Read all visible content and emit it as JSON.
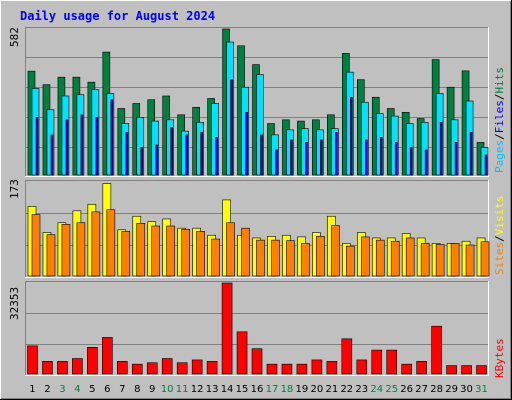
{
  "chart_data": [
    {
      "type": "bar",
      "title": "Daily usage for August 2024",
      "categories": [
        "1",
        "2",
        "3",
        "4",
        "5",
        "6",
        "7",
        "8",
        "9",
        "10",
        "11",
        "12",
        "13",
        "14",
        "15",
        "16",
        "17",
        "18",
        "19",
        "20",
        "21",
        "22",
        "23",
        "24",
        "25",
        "26",
        "27",
        "28",
        "29",
        "30",
        "31"
      ],
      "y_max_label": "582",
      "ylim": [
        0,
        582
      ],
      "grid": true,
      "legend": "right",
      "ylabel_parts": [
        "Pages",
        "/",
        "Files",
        "/",
        "Hits"
      ],
      "series": [
        {
          "name": "Hits",
          "color": "#008040",
          "values": [
            414,
            360,
            390,
            390,
            370,
            490,
            265,
            285,
            300,
            315,
            240,
            270,
            305,
            582,
            515,
            440,
            205,
            220,
            215,
            220,
            240,
            485,
            380,
            310,
            265,
            250,
            225,
            460,
            350,
            415,
            130
          ]
        },
        {
          "name": "Files",
          "color": "#00e0ff",
          "values": [
            345,
            260,
            315,
            320,
            340,
            325,
            205,
            230,
            215,
            220,
            175,
            210,
            285,
            530,
            350,
            400,
            160,
            180,
            185,
            180,
            185,
            410,
            290,
            245,
            235,
            205,
            210,
            325,
            220,
            295,
            110
          ]
        },
        {
          "name": "Pages",
          "color": "#0000ff",
          "values": [
            230,
            160,
            220,
            240,
            230,
            300,
            170,
            110,
            120,
            190,
            160,
            170,
            150,
            380,
            250,
            160,
            100,
            140,
            130,
            140,
            170,
            310,
            140,
            150,
            130,
            110,
            100,
            210,
            130,
            170,
            80
          ]
        }
      ]
    },
    {
      "type": "bar",
      "categories": [
        "1",
        "2",
        "3",
        "4",
        "5",
        "6",
        "7",
        "8",
        "9",
        "10",
        "11",
        "12",
        "13",
        "14",
        "15",
        "16",
        "17",
        "18",
        "19",
        "20",
        "21",
        "22",
        "23",
        "24",
        "25",
        "26",
        "27",
        "28",
        "29",
        "30",
        "31"
      ],
      "y_max_label": "173",
      "ylim": [
        0,
        173
      ],
      "grid": true,
      "legend": "right",
      "ylabel_parts": [
        "Sites",
        "/",
        "Visits"
      ],
      "series": [
        {
          "name": "Visits",
          "color": "#ffff00",
          "values": [
            128,
            80,
            98,
            120,
            132,
            170,
            85,
            110,
            100,
            105,
            88,
            88,
            75,
            140,
            75,
            70,
            73,
            75,
            72,
            80,
            110,
            60,
            80,
            70,
            70,
            78,
            70,
            60,
            60,
            64,
            70
          ]
        },
        {
          "name": "Sites",
          "color": "#ff8000",
          "values": [
            113,
            76,
            95,
            98,
            118,
            122,
            82,
            97,
            92,
            92,
            86,
            82,
            68,
            98,
            88,
            66,
            66,
            65,
            60,
            73,
            93,
            55,
            72,
            66,
            64,
            70,
            60,
            58,
            60,
            57,
            63
          ]
        }
      ]
    },
    {
      "type": "bar",
      "categories": [
        "1",
        "2",
        "3",
        "4",
        "5",
        "6",
        "7",
        "8",
        "9",
        "10",
        "11",
        "12",
        "13",
        "14",
        "15",
        "16",
        "17",
        "18",
        "19",
        "20",
        "21",
        "22",
        "23",
        "24",
        "25",
        "26",
        "27",
        "28",
        "29",
        "30",
        "31"
      ],
      "y_max_label": "32353",
      "ylim": [
        0,
        32353
      ],
      "grid": true,
      "legend": "right",
      "ylabel_parts": [
        "KBytes"
      ],
      "series": [
        {
          "name": "KBytes",
          "color": "#ff0000",
          "values": [
            10000,
            4500,
            4500,
            5500,
            9500,
            13000,
            4500,
            3500,
            4000,
            5500,
            4000,
            5000,
            4500,
            32353,
            15000,
            9000,
            3500,
            3500,
            3500,
            5000,
            4500,
            12500,
            5000,
            8500,
            8500,
            3500,
            4500,
            17000,
            3000,
            3000,
            3000
          ]
        }
      ]
    }
  ],
  "weekend_days": [
    "3",
    "4",
    "10",
    "11",
    "17",
    "18",
    "24",
    "25",
    "31"
  ],
  "colors": {
    "background": "#c0c0c0",
    "panel": "#c0c0c0",
    "grid": "#808080",
    "title": "#0000ff",
    "day_normal": "#000000",
    "day_weekend": "#008040"
  }
}
